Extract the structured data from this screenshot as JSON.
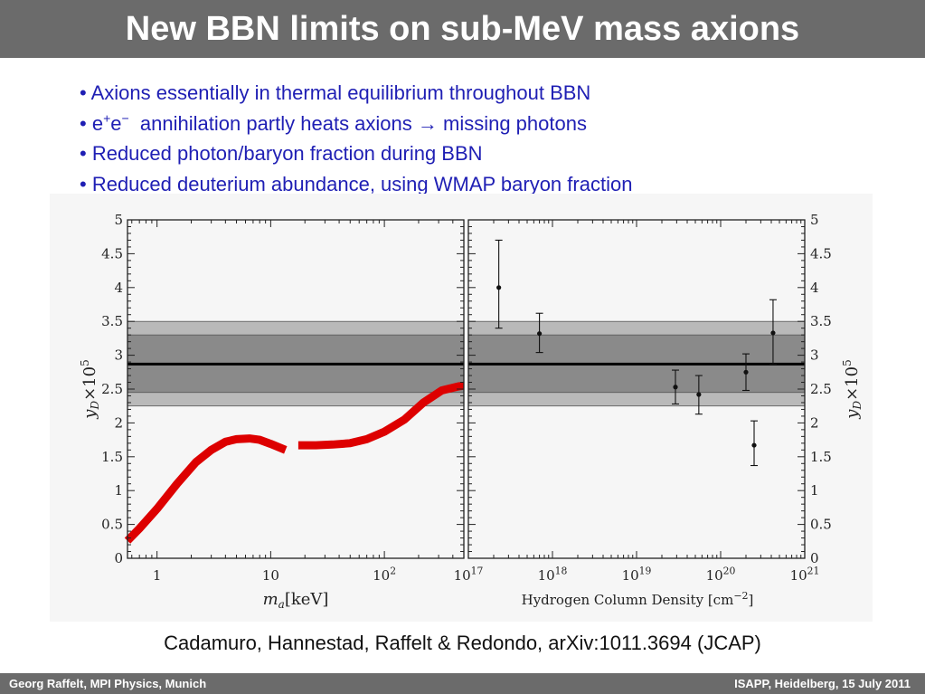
{
  "slide": {
    "title": "New BBN limits on sub-MeV mass axions",
    "citation": "Cadamuro, Hannestad, Raffelt & Redondo, arXiv:1011.3694 (JCAP)",
    "footer_left": "Georg Raffelt, MPI Physics, Munich",
    "footer_right": "ISAPP, Heidelberg, 15 July 2011",
    "colors": {
      "title_bar": "#6b6b6b",
      "bullet_text": "#1f1fb4",
      "curve": "#dd0000"
    }
  },
  "bullets": [
    {
      "parts": [
        "• Axions essentially in thermal equilibrium throughout BBN"
      ]
    },
    {
      "parts": [
        "• e",
        "+",
        "e",
        "−",
        "  annihilation partly heats axions → missing photons"
      ]
    },
    {
      "parts": [
        "• Reduced photon/baryon fraction during BBN"
      ]
    },
    {
      "parts": [
        "• Reduced deuterium abundance, using WMAP baryon fraction"
      ]
    }
  ],
  "chart_data": [
    {
      "type": "line",
      "xscale": "log",
      "xlim": [
        0.55,
        500
      ],
      "ylim": [
        0,
        5
      ],
      "xlabel": "m_a[keV]",
      "ylabel": "y_D×10^5",
      "xticklabels": [
        "1",
        "10",
        "10^2"
      ],
      "yticklabels": [
        "0",
        "0.5",
        "1",
        "1.5",
        "2",
        "2.5",
        "3",
        "3.5",
        "4",
        "4.5",
        "5"
      ],
      "bands": [
        {
          "range": [
            2.25,
            3.5
          ],
          "shade": "light"
        },
        {
          "range": [
            2.45,
            3.3
          ],
          "shade": "dark"
        }
      ],
      "reference_line": 2.87,
      "series": [
        {
          "curve": "red band",
          "x": [
            0.55,
            0.7,
            1.0,
            1.5,
            2.2,
            3.0,
            4.0,
            5.0,
            6.5,
            8.0,
            10.0,
            13.5,
            17.5,
            25.0,
            35.0,
            50.0,
            70.0,
            100.0,
            150.0,
            220.0,
            320.0,
            450.0,
            500.0
          ],
          "y": [
            0.26,
            0.44,
            0.73,
            1.1,
            1.42,
            1.6,
            1.72,
            1.76,
            1.77,
            1.75,
            1.69,
            1.6,
            1.67,
            1.67,
            1.68,
            1.7,
            1.76,
            1.87,
            2.05,
            2.3,
            2.48,
            2.54,
            2.55
          ],
          "gap_x": [
            13.5,
            17.5
          ],
          "band_halfwidth": 0.05
        }
      ]
    },
    {
      "type": "scatter",
      "xscale": "log",
      "xlim": [
        1e+17,
        1e+21
      ],
      "ylim": [
        0,
        5
      ],
      "xlabel": "Hydrogen Column Density [cm^-2]",
      "ylabel": "y_D×10^5",
      "xticklabels": [
        "10^17",
        "10^18",
        "10^19",
        "10^20",
        "10^21"
      ],
      "yticklabels": [
        "0",
        "0.5",
        "1",
        "1.5",
        "2",
        "2.5",
        "3",
        "3.5",
        "4",
        "4.5",
        "5"
      ],
      "bands": [
        {
          "range": [
            2.25,
            3.5
          ],
          "shade": "light"
        },
        {
          "range": [
            2.45,
            3.3
          ],
          "shade": "dark"
        }
      ],
      "reference_line": 2.87,
      "series": [
        {
          "points": [
            {
              "x": 2.3e+17,
              "y": 4.0,
              "lo": 3.4,
              "hi": 4.7
            },
            {
              "x": 7e+17,
              "y": 3.32,
              "lo": 3.04,
              "hi": 3.62
            },
            {
              "x": 2.9e+19,
              "y": 2.53,
              "lo": 2.28,
              "hi": 2.78
            },
            {
              "x": 5.5e+19,
              "y": 2.42,
              "lo": 2.13,
              "hi": 2.7
            },
            {
              "x": 2e+20,
              "y": 2.75,
              "lo": 2.48,
              "hi": 3.02
            },
            {
              "x": 2.5e+20,
              "y": 1.67,
              "lo": 1.37,
              "hi": 2.03
            },
            {
              "x": 4.2e+20,
              "y": 3.33,
              "lo": 2.87,
              "hi": 3.82
            }
          ]
        }
      ]
    }
  ]
}
